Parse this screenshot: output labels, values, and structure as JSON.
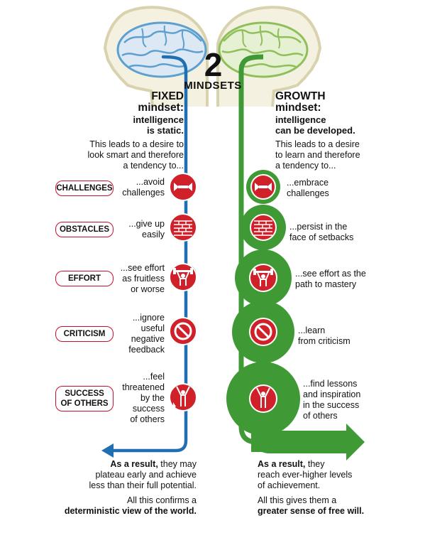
{
  "title": {
    "number": "2",
    "word": "MINDSETS"
  },
  "fixed": {
    "heading": "FIXED",
    "line2": "mindset:",
    "desc_lines": [
      "intelligence",
      "is static."
    ],
    "lead_lines": [
      "This leads to a desire to",
      "look smart and therefore",
      "a tendency to..."
    ],
    "items": [
      [
        "...avoid",
        "challenges"
      ],
      [
        "...give up",
        "easily"
      ],
      [
        "...see effort",
        "as fruitless",
        "or worse"
      ],
      [
        "...ignore",
        "useful",
        "negative",
        "feedback"
      ],
      [
        "...feel",
        "threatened",
        "by the",
        "success",
        "of others"
      ]
    ],
    "result_bold": "As a result,",
    "result_lines": [
      "they may",
      "plateau early and achieve",
      "less than their full potential."
    ],
    "confirm_line": "All this confirms a",
    "confirm_bold": "deterministic view of the world."
  },
  "growth": {
    "heading": "GROWTH",
    "line2": "mindset:",
    "desc_lines": [
      "intelligence",
      "can be developed."
    ],
    "lead_lines": [
      "This leads to a desire",
      "to learn and therefore",
      "a tendency to..."
    ],
    "items": [
      [
        "...embrace",
        "challenges"
      ],
      [
        "...persist in the",
        "face of setbacks"
      ],
      [
        "...see effort as the",
        "path to mastery"
      ],
      [
        "...learn",
        "from criticism"
      ],
      [
        "...find lessons",
        "and inspiration",
        "in the success",
        "of others"
      ]
    ],
    "result_bold": "As a result,",
    "result_lines": [
      "they",
      "reach ever-higher levels",
      "of achievement."
    ],
    "confirm_line": "All this gives them a",
    "confirm_bold": "greater sense of free will."
  },
  "badges": [
    [
      "CHALLENGES"
    ],
    [
      "OBSTACLES"
    ],
    [
      "EFFORT"
    ],
    [
      "CRITICISM"
    ],
    [
      "SUCCESS",
      "OF OTHERS"
    ]
  ],
  "icons": [
    "challenge-arrows-icon",
    "brick-wall-icon",
    "weightlifter-icon",
    "prohibited-icon",
    "cheering-person-icon"
  ],
  "colors": {
    "fixed_line": "#1f6fb2",
    "growth": "#3f9a35",
    "icon_red": "#d0202a",
    "badge_border": "#c8102e",
    "head_fill": "#f4f1e0",
    "head_stroke": "#d8d2ae",
    "brain_blue": "#5d9fcf",
    "brain_green": "#8fbf5a"
  }
}
